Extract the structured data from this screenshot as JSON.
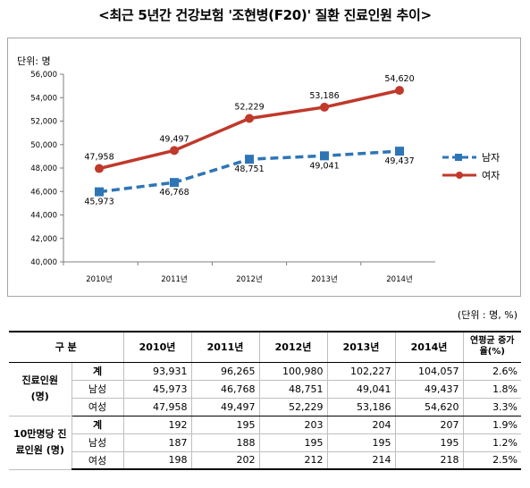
{
  "title": "<최근 5년간 건강보험 '조현병(F20)' 질환 진료인원 추이>",
  "chart_data": {
    "type": "line",
    "unit_label": "단위: 명",
    "categories": [
      "2010년",
      "2011년",
      "2012년",
      "2013년",
      "2014년"
    ],
    "ylim": [
      40000,
      56000
    ],
    "yticks": [
      "40,000",
      "42,000",
      "44,000",
      "46,000",
      "48,000",
      "50,000",
      "52,000",
      "54,000",
      "56,000"
    ],
    "legend_position": "right",
    "grid": false,
    "series": [
      {
        "name": "남자",
        "values": [
          45973,
          46768,
          48751,
          49041,
          49437
        ],
        "labels": [
          "45,973",
          "46,768",
          "48,751",
          "49,041",
          "49,437"
        ],
        "color": "#2e75b6",
        "dashed": true,
        "marker": "square"
      },
      {
        "name": "여자",
        "values": [
          47958,
          49497,
          52229,
          53186,
          54620
        ],
        "labels": [
          "47,958",
          "49,497",
          "52,229",
          "53,186",
          "54,620"
        ],
        "color": "#c0392b",
        "dashed": false,
        "marker": "circle"
      }
    ]
  },
  "table": {
    "unit_note": "(단위 : 명, %)",
    "header": {
      "category": "구  분",
      "years": [
        "2010년",
        "2011년",
        "2012년",
        "2013년",
        "2014년"
      ],
      "growth": "연평균 증가율(%)"
    },
    "groups": [
      {
        "label": "진료인원 (명)",
        "rows": [
          {
            "sub": "계",
            "values": [
              "93,931",
              "96,265",
              "100,980",
              "102,227",
              "104,057"
            ],
            "growth": "2.6%"
          },
          {
            "sub": "남성",
            "values": [
              "45,973",
              "46,768",
              "48,751",
              "49,041",
              "49,437"
            ],
            "growth": "1.8%"
          },
          {
            "sub": "여성",
            "values": [
              "47,958",
              "49,497",
              "52,229",
              "53,186",
              "54,620"
            ],
            "growth": "3.3%"
          }
        ]
      },
      {
        "label": "10만명당 진료인원 (명)",
        "rows": [
          {
            "sub": "계",
            "values": [
              "192",
              "195",
              "203",
              "204",
              "207"
            ],
            "growth": "1.9%"
          },
          {
            "sub": "남성",
            "values": [
              "187",
              "188",
              "195",
              "195",
              "195"
            ],
            "growth": "1.2%"
          },
          {
            "sub": "여성",
            "values": [
              "198",
              "202",
              "212",
              "214",
              "218"
            ],
            "growth": "2.5%"
          }
        ]
      }
    ]
  }
}
